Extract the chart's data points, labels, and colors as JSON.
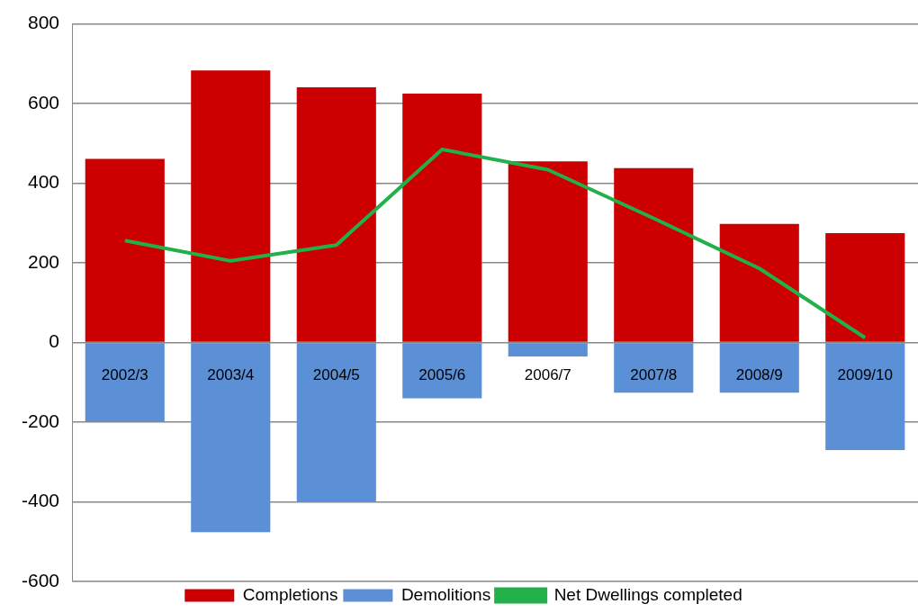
{
  "chart_data": {
    "type": "bar",
    "stacked": true,
    "categories": [
      "2002/3",
      "2003/4",
      "2004/5",
      "2005/6",
      "2006/7",
      "2007/8",
      "2008/9",
      "2009/10"
    ],
    "series": [
      {
        "name": "Completions",
        "color": "#cc0000",
        "values": [
          461,
          683,
          641,
          625,
          455,
          438,
          298,
          275
        ]
      },
      {
        "name": "Demolitions",
        "color": "#5b8fd6",
        "values": [
          -198,
          -476,
          -399,
          -140,
          -35,
          -126,
          -126,
          -270
        ]
      },
      {
        "name": "Net Dwellings completed",
        "type": "line",
        "color": "#22b04b",
        "values": [
          256,
          205,
          245,
          485,
          434,
          312,
          186,
          12
        ]
      }
    ],
    "ylim": [
      -600,
      800
    ],
    "yticks": [
      -600,
      -400,
      -200,
      0,
      200,
      400,
      600,
      800
    ],
    "grid": "y",
    "legend": "bottom",
    "marker": "none"
  }
}
